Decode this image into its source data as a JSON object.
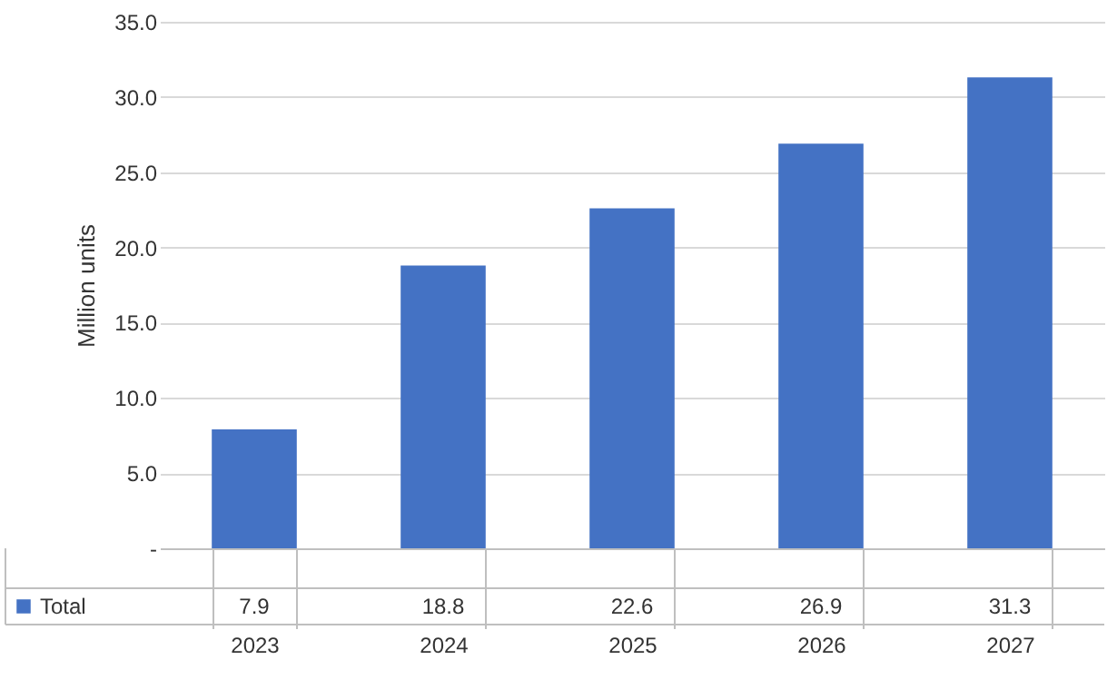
{
  "chart_data": {
    "type": "bar",
    "ylabel": "Million units",
    "categories": [
      "2023",
      "2024",
      "2025",
      "2026",
      "2027"
    ],
    "series": [
      {
        "name": "Total",
        "color": "#4472c4",
        "values": [
          7.9,
          18.8,
          22.6,
          26.9,
          31.3
        ]
      }
    ],
    "ylim": [
      0,
      35
    ],
    "yticks": [
      {
        "value": 0,
        "label": "-"
      },
      {
        "value": 5,
        "label": "5.0"
      },
      {
        "value": 10,
        "label": "10.0"
      },
      {
        "value": 15,
        "label": "15.0"
      },
      {
        "value": 20,
        "label": "20.0"
      },
      {
        "value": 25,
        "label": "25.0"
      },
      {
        "value": 30,
        "label": "30.0"
      },
      {
        "value": 35,
        "label": "35.0"
      }
    ],
    "grid": "y",
    "data_labels": true,
    "legend": "bottom left"
  }
}
